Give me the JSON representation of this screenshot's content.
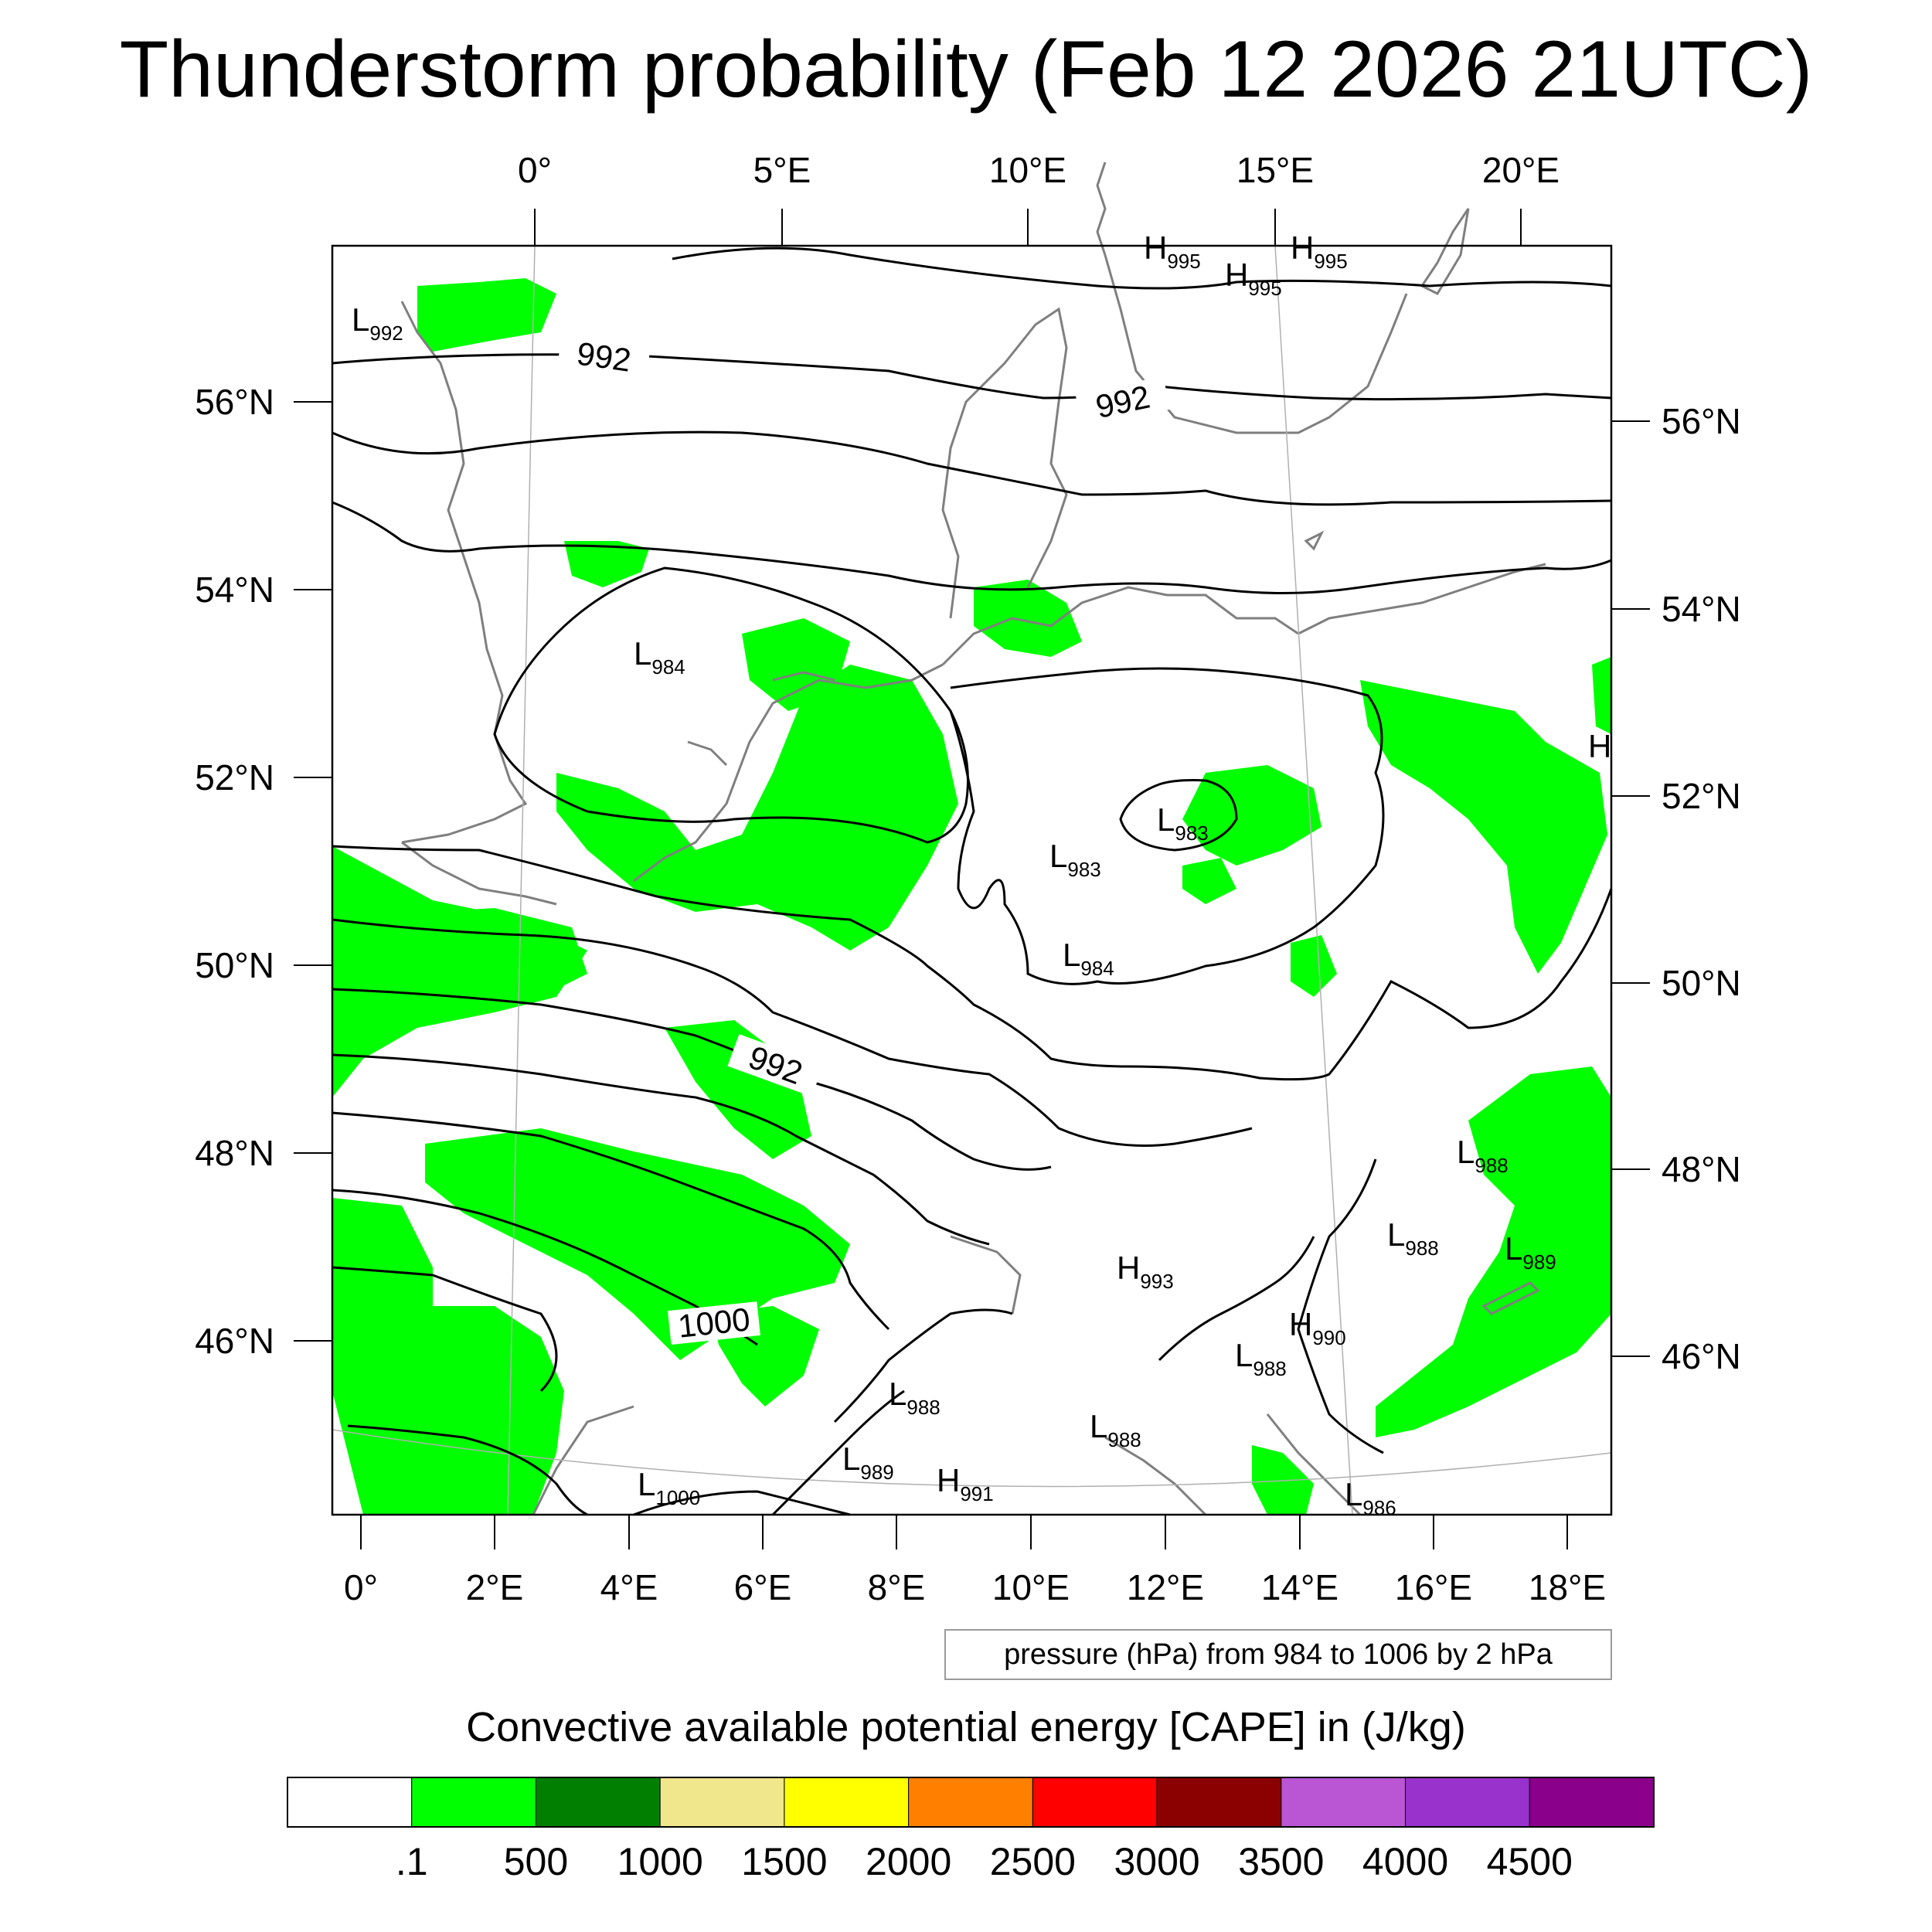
{
  "title": "Thunderstorm probability (Feb 12 2026 21UTC)",
  "top_lon_labels": [
    "0°",
    "5°E",
    "10°E",
    "15°E",
    "20°E"
  ],
  "bottom_lon_labels": [
    "0°",
    "2°E",
    "4°E",
    "6°E",
    "8°E",
    "10°E",
    "12°E",
    "14°E",
    "16°E",
    "18°E"
  ],
  "left_lat_labels": [
    "56°N",
    "54°N",
    "52°N",
    "50°N",
    "48°N",
    "46°N"
  ],
  "right_lat_labels": [
    "56°N",
    "54°N",
    "52°N",
    "50°N",
    "48°N",
    "46°N"
  ],
  "contour_labels": [
    "992",
    "992",
    "992",
    "1000"
  ],
  "pressure_centers": [
    {
      "type": "H",
      "value": "995"
    },
    {
      "type": "H",
      "value": "995"
    },
    {
      "type": "H",
      "value": "995"
    },
    {
      "type": "L",
      "value": "992"
    },
    {
      "type": "L",
      "value": "984"
    },
    {
      "type": "H",
      "value": ""
    },
    {
      "type": "L",
      "value": "983"
    },
    {
      "type": "L",
      "value": "983"
    },
    {
      "type": "L",
      "value": "984"
    },
    {
      "type": "L",
      "value": "988"
    },
    {
      "type": "L",
      "value": "988"
    },
    {
      "type": "L",
      "value": "989"
    },
    {
      "type": "H",
      "value": "993"
    },
    {
      "type": "H",
      "value": "990"
    },
    {
      "type": "L",
      "value": "988"
    },
    {
      "type": "L",
      "value": "988"
    },
    {
      "type": "L",
      "value": "988"
    },
    {
      "type": "L",
      "value": "989"
    },
    {
      "type": "H",
      "value": "991"
    },
    {
      "type": "L",
      "value": "1000"
    },
    {
      "type": "L",
      "value": "986"
    }
  ],
  "contour_note": "pressure (hPa) from 984 to 1006 by 2 hPa",
  "colorbar": {
    "title": "Convective available potential energy [CAPE] in (J/kg)",
    "labels": [
      ".1",
      "500",
      "1000",
      "1500",
      "2000",
      "2500",
      "3000",
      "3500",
      "4000",
      "4500"
    ],
    "colors": [
      "#ffffff",
      "#00ff00",
      "#007f00",
      "#f0e68c",
      "#ffff00",
      "#ff7f00",
      "#ff0000",
      "#8b0000",
      "#ba55d3",
      "#9932cc",
      "#8b008b"
    ]
  },
  "colors": {
    "cape_fill": "#00ff00",
    "coastline": "#7f7f7f",
    "isobar": "#000000"
  }
}
